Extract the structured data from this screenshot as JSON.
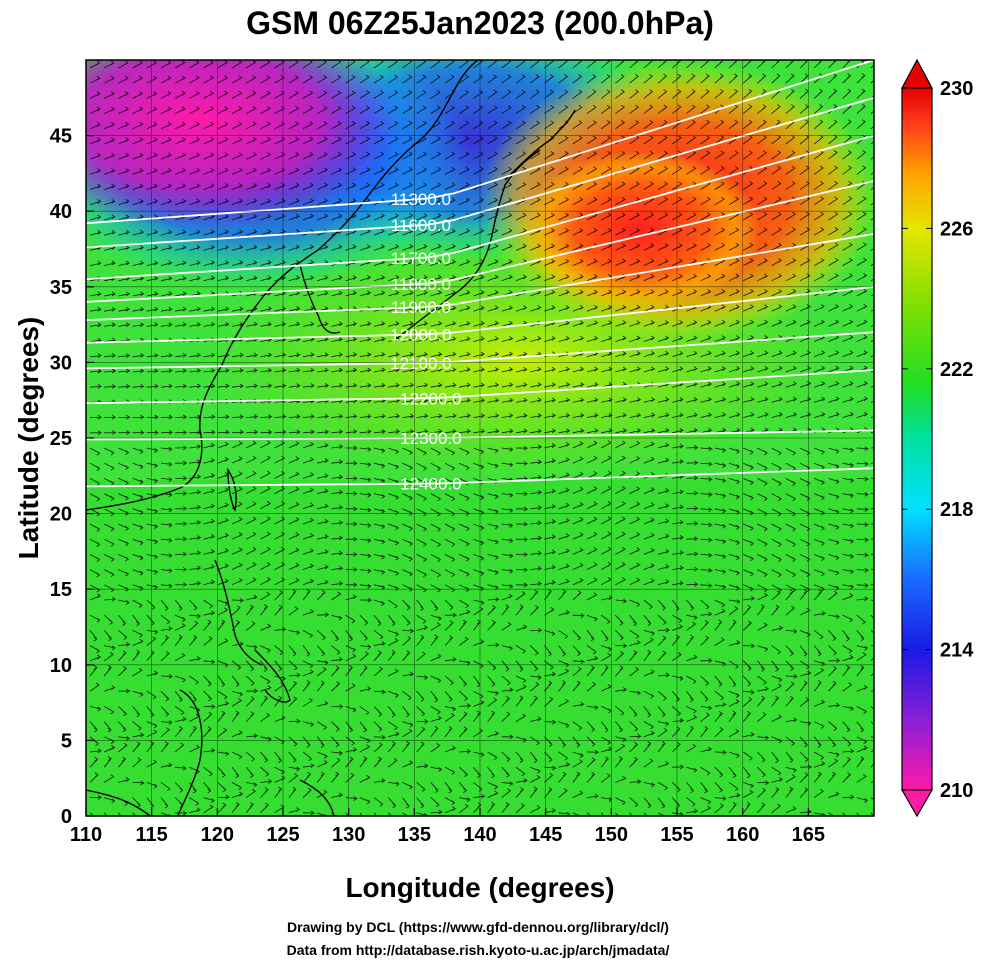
{
  "chart_data": {
    "type": "heatmap",
    "title": "GSM 06Z25Jan2023 (200.0hPa)",
    "xlabel": "Longitude (degrees)",
    "ylabel": "Latitude  (degrees)",
    "xlim": [
      110,
      170
    ],
    "ylim": [
      0,
      50
    ],
    "x_ticks": [
      110,
      115,
      120,
      125,
      130,
      135,
      140,
      145,
      150,
      155,
      160,
      165
    ],
    "y_ticks": [
      0,
      5,
      10,
      15,
      20,
      25,
      30,
      35,
      40,
      45
    ],
    "colorbar": {
      "min": 210,
      "max": 230,
      "ticks": [
        210,
        214,
        218,
        222,
        226,
        230
      ],
      "colors": [
        "#ff1aa8",
        "#8a1fd6",
        "#1a1ae6",
        "#1a6aff",
        "#00e0ff",
        "#00e0a0",
        "#22dd22",
        "#88e000",
        "#e6e600",
        "#ffa000",
        "#ff3a1a",
        "#e60000"
      ],
      "extend": "both"
    },
    "background_field": [
      {
        "value": 223,
        "note": "tropics"
      },
      {
        "value": 211,
        "region": "110-127E, 40-50N"
      },
      {
        "value": 214,
        "region": "125-135E, 38-50N"
      },
      {
        "value": 229,
        "region": "148-162E, 38-47N"
      }
    ],
    "contours": [
      {
        "label": "11300.0",
        "lat_at_110": 39.2,
        "lat_at_170": 50.0
      },
      {
        "label": "11600.0",
        "lat_at_110": 37.6,
        "lat_at_170": 47.5
      },
      {
        "label": "11700.0",
        "lat_at_110": 35.5,
        "lat_at_170": 45.0
      },
      {
        "label": "11800.0",
        "lat_at_110": 34.0,
        "lat_at_170": 42.0
      },
      {
        "label": "11900.0",
        "lat_at_110": 32.8,
        "lat_at_170": 38.5
      },
      {
        "label": "12000.0",
        "lat_at_110": 31.3,
        "lat_at_170": 35.0
      },
      {
        "label": "12100.0",
        "lat_at_110": 29.6,
        "lat_at_170": 32.0
      },
      {
        "label": "12200.0",
        "lat_at_110": 27.3,
        "lat_at_170": 29.5
      },
      {
        "label": "12300.0",
        "lat_at_110": 24.9,
        "lat_at_170": 25.5
      },
      {
        "label": "12400.0",
        "lat_at_110": 21.8,
        "lat_at_170": 23.0
      }
    ]
  },
  "credits": {
    "line1": "Drawing by DCL (https://www.gfd-dennou.org/library/dcl/)",
    "line2": "Data from http://database.rish.kyoto-u.ac.jp/arch/jmadata/"
  }
}
